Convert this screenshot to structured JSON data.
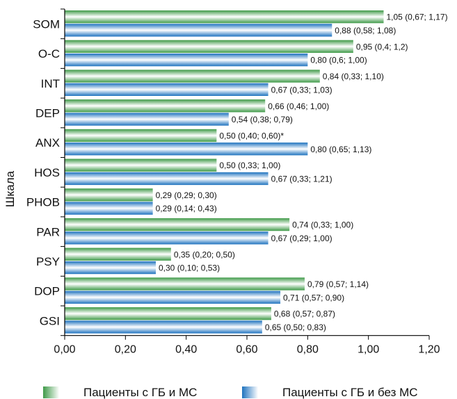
{
  "chart_data": {
    "type": "bar",
    "orientation": "horizontal",
    "ylabel": "Шкала",
    "xlabel": "",
    "xlim": [
      0,
      1.2
    ],
    "xticks": [
      "0,00",
      "0,20",
      "0,40",
      "0,60",
      "0,80",
      "1,00",
      "1,20"
    ],
    "xtick_values": [
      0,
      0.2,
      0.4,
      0.6,
      0.8,
      1.0,
      1.2
    ],
    "grid": false,
    "legend_position": "bottom",
    "categories": [
      "SOM",
      "O-C",
      "INT",
      "DEP",
      "ANX",
      "HOS",
      "PHOB",
      "PAR",
      "PSY",
      "DOP",
      "GSI"
    ],
    "series": [
      {
        "name": "Пациенты с ГБ и МС",
        "color": "#5aa85a",
        "values": [
          1.05,
          0.95,
          0.84,
          0.66,
          0.5,
          0.5,
          0.29,
          0.74,
          0.35,
          0.79,
          0.68
        ],
        "labels": [
          "1,05 (0,67; 1,17)",
          "0,95 (0,4; 1,2)",
          "0,84 (0,33; 1,10)",
          "0,66 (0,46; 1,00)",
          "0,50 (0,40; 0,60)*",
          "0,50 (0,33; 1,00)",
          "0,29 (0,29; 0,30)",
          "0,74 (0,33; 1,00)",
          "0,35 (0,20; 0,50)",
          "0,79 (0,57; 1,14)",
          "0,68 (0,57; 0,87)"
        ]
      },
      {
        "name": "Пациенты с ГБ и без МС",
        "color": "#2f84c8",
        "values": [
          0.88,
          0.8,
          0.67,
          0.54,
          0.8,
          0.67,
          0.29,
          0.67,
          0.3,
          0.71,
          0.65
        ],
        "labels": [
          "0,88 (0,58; 1,08)",
          "0,80 (0,6; 1,00)",
          "0,67 (0,33; 1,03)",
          "0,54 (0,38; 0,79)",
          "0,80 (0,65; 1,13)",
          "0,67 (0,33; 1,21)",
          "0,29 (0,14; 0,43)",
          "0,67 (0,29; 1,00)",
          "0,30 (0,10; 0,53)",
          "0,71 (0,57; 0,90)",
          "0,65 (0,50; 0,83)"
        ]
      }
    ]
  }
}
